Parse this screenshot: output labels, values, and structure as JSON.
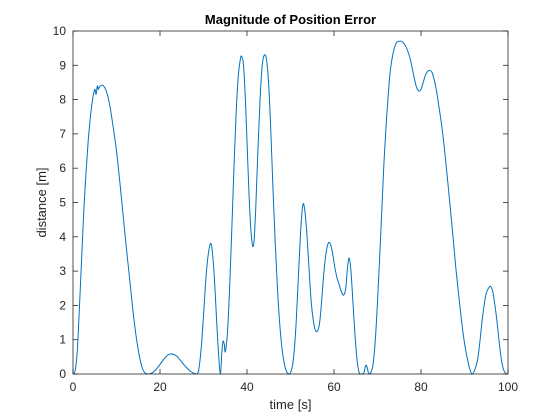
{
  "chart_data": {
    "type": "line",
    "title": "Magnitude of Position Error",
    "xlabel": "time [s]",
    "ylabel": "distance [m]",
    "xlim": [
      0,
      100
    ],
    "ylim": [
      0,
      10
    ],
    "x_ticks": [
      0,
      20,
      40,
      60,
      80,
      100
    ],
    "y_ticks": [
      0,
      1,
      2,
      3,
      4,
      5,
      6,
      7,
      8,
      9,
      10
    ],
    "grid": false,
    "box": true,
    "series": [
      {
        "color": "#0072BD",
        "points": [
          [
            0,
            0
          ],
          [
            0.5,
            0.1
          ],
          [
            1,
            0.7
          ],
          [
            1.5,
            2.0
          ],
          [
            2,
            3.4
          ],
          [
            2.5,
            4.8
          ],
          [
            3,
            5.9
          ],
          [
            3.5,
            6.8
          ],
          [
            4,
            7.5
          ],
          [
            4.5,
            8.0
          ],
          [
            5,
            8.3
          ],
          [
            5.3,
            8.15
          ],
          [
            5.6,
            8.4
          ],
          [
            5.8,
            8.3
          ],
          [
            6,
            8.35
          ],
          [
            6.5,
            8.42
          ],
          [
            7,
            8.4
          ],
          [
            7.5,
            8.3
          ],
          [
            8,
            8.1
          ],
          [
            8.5,
            7.8
          ],
          [
            9,
            7.4
          ],
          [
            10,
            6.5
          ],
          [
            11,
            5.3
          ],
          [
            12,
            4.0
          ],
          [
            13,
            2.8
          ],
          [
            14,
            1.6
          ],
          [
            15,
            0.7
          ],
          [
            16,
            0.15
          ],
          [
            17,
            0.0
          ],
          [
            18,
            0.02
          ],
          [
            19,
            0.12
          ],
          [
            20,
            0.28
          ],
          [
            21,
            0.45
          ],
          [
            22,
            0.57
          ],
          [
            23,
            0.58
          ],
          [
            24,
            0.5
          ],
          [
            25,
            0.35
          ],
          [
            26,
            0.2
          ],
          [
            27,
            0.08
          ],
          [
            28,
            0.01
          ],
          [
            28.6,
            0.0
          ],
          [
            29,
            0.2
          ],
          [
            29.5,
            0.8
          ],
          [
            30,
            1.7
          ],
          [
            30.5,
            2.7
          ],
          [
            31,
            3.4
          ],
          [
            31.6,
            3.8
          ],
          [
            32,
            3.6
          ],
          [
            32.5,
            2.8
          ],
          [
            33,
            1.6
          ],
          [
            33.5,
            0.5
          ],
          [
            33.9,
            0.0
          ],
          [
            34.2,
            0.6
          ],
          [
            34.5,
            0.95
          ],
          [
            34.8,
            0.85
          ],
          [
            35,
            0.65
          ],
          [
            35.5,
            1.2
          ],
          [
            36,
            2.5
          ],
          [
            36.5,
            4.2
          ],
          [
            37,
            6.0
          ],
          [
            37.5,
            7.6
          ],
          [
            38,
            8.7
          ],
          [
            38.5,
            9.2
          ],
          [
            38.8,
            9.25
          ],
          [
            39.2,
            9.0
          ],
          [
            39.7,
            7.8
          ],
          [
            40.2,
            6.1
          ],
          [
            40.7,
            4.6
          ],
          [
            41.2,
            3.8
          ],
          [
            41.6,
            3.85
          ],
          [
            42,
            4.8
          ],
          [
            42.5,
            6.5
          ],
          [
            43,
            8.0
          ],
          [
            43.5,
            9.0
          ],
          [
            44,
            9.3
          ],
          [
            44.5,
            9.15
          ],
          [
            45,
            8.4
          ],
          [
            45.5,
            7.0
          ],
          [
            46,
            5.3
          ],
          [
            46.5,
            3.8
          ],
          [
            47,
            2.5
          ],
          [
            47.5,
            1.5
          ],
          [
            48,
            0.8
          ],
          [
            48.5,
            0.35
          ],
          [
            49,
            0.1
          ],
          [
            49.7,
            0.0
          ],
          [
            50.3,
            0.15
          ],
          [
            50.8,
            0.6
          ],
          [
            51.3,
            1.5
          ],
          [
            51.8,
            2.8
          ],
          [
            52.3,
            4.1
          ],
          [
            52.8,
            4.9
          ],
          [
            53.2,
            4.85
          ],
          [
            53.7,
            4.2
          ],
          [
            54.2,
            3.2
          ],
          [
            54.7,
            2.2
          ],
          [
            55.2,
            1.6
          ],
          [
            55.7,
            1.28
          ],
          [
            56.2,
            1.25
          ],
          [
            56.7,
            1.5
          ],
          [
            57.2,
            2.2
          ],
          [
            57.7,
            3.0
          ],
          [
            58.2,
            3.55
          ],
          [
            58.7,
            3.82
          ],
          [
            59.2,
            3.78
          ],
          [
            59.7,
            3.5
          ],
          [
            60.2,
            3.1
          ],
          [
            60.7,
            2.8
          ],
          [
            61.2,
            2.6
          ],
          [
            61.7,
            2.4
          ],
          [
            62.2,
            2.3
          ],
          [
            62.7,
            2.5
          ],
          [
            63.1,
            3.1
          ],
          [
            63.5,
            3.38
          ],
          [
            63.9,
            3.0
          ],
          [
            64.4,
            2.0
          ],
          [
            64.9,
            1.0
          ],
          [
            65.4,
            0.3
          ],
          [
            65.9,
            0.0
          ],
          [
            66.4,
            0.0
          ],
          [
            66.9,
            0.05
          ],
          [
            67.3,
            0.25
          ],
          [
            67.6,
            0.2
          ],
          [
            68,
            0.0
          ],
          [
            68.5,
            0.05
          ],
          [
            69,
            0.3
          ],
          [
            69.5,
            1.0
          ],
          [
            70,
            2.1
          ],
          [
            70.5,
            3.4
          ],
          [
            71,
            4.8
          ],
          [
            71.5,
            6.2
          ],
          [
            72,
            7.3
          ],
          [
            72.5,
            8.2
          ],
          [
            73,
            8.9
          ],
          [
            73.5,
            9.3
          ],
          [
            74,
            9.55
          ],
          [
            74.5,
            9.68
          ],
          [
            75,
            9.7
          ],
          [
            75.5,
            9.7
          ],
          [
            76,
            9.65
          ],
          [
            76.5,
            9.55
          ],
          [
            77,
            9.4
          ],
          [
            77.5,
            9.2
          ],
          [
            78,
            8.9
          ],
          [
            78.5,
            8.6
          ],
          [
            79,
            8.35
          ],
          [
            79.5,
            8.25
          ],
          [
            80,
            8.3
          ],
          [
            80.5,
            8.5
          ],
          [
            81,
            8.7
          ],
          [
            81.5,
            8.82
          ],
          [
            82,
            8.85
          ],
          [
            82.5,
            8.8
          ],
          [
            83,
            8.6
          ],
          [
            83.5,
            8.3
          ],
          [
            84,
            7.9
          ],
          [
            85,
            7.0
          ],
          [
            86,
            5.8
          ],
          [
            87,
            4.5
          ],
          [
            88,
            3.1
          ],
          [
            89,
            1.9
          ],
          [
            90,
            0.9
          ],
          [
            91,
            0.25
          ],
          [
            91.7,
            0.0
          ],
          [
            92.3,
            0.1
          ],
          [
            93,
            0.4
          ],
          [
            93.5,
            0.9
          ],
          [
            94,
            1.5
          ],
          [
            94.5,
            2.0
          ],
          [
            95,
            2.35
          ],
          [
            95.5,
            2.5
          ],
          [
            96,
            2.55
          ],
          [
            96.5,
            2.4
          ],
          [
            97,
            2.0
          ],
          [
            97.5,
            1.5
          ],
          [
            98,
            0.9
          ],
          [
            98.5,
            0.4
          ],
          [
            99,
            0.12
          ],
          [
            99.5,
            0.02
          ],
          [
            100,
            0.0
          ]
        ]
      }
    ]
  }
}
